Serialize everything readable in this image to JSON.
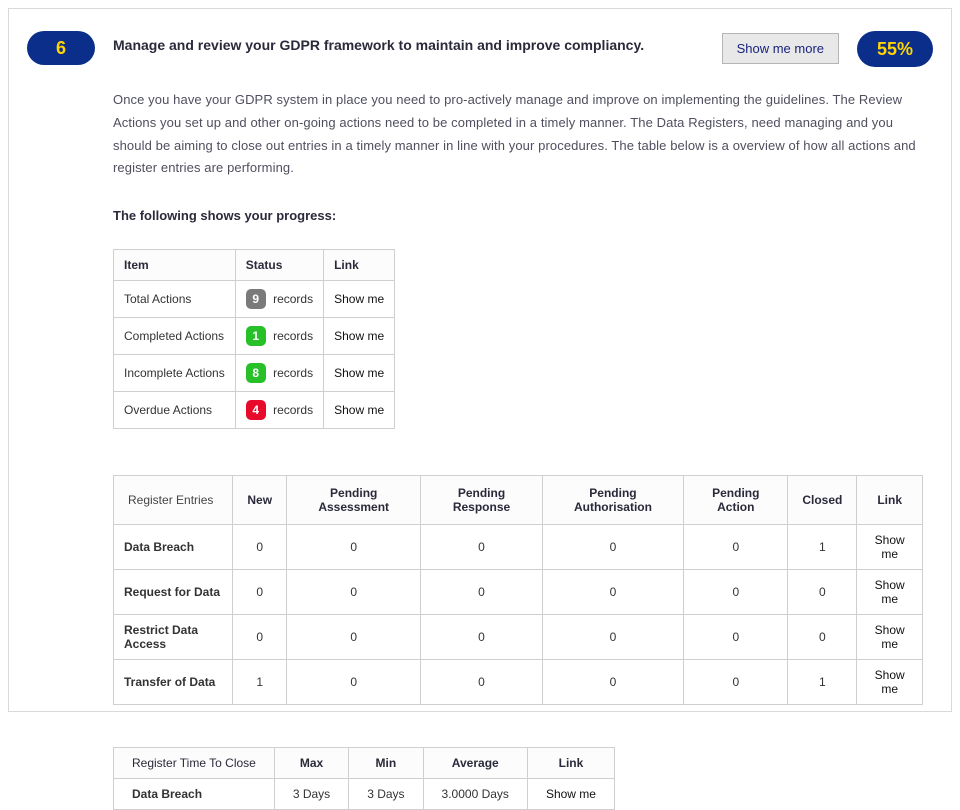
{
  "step": {
    "number": "6",
    "percent": "55%"
  },
  "title": "Manage and review your GDPR framework to maintain and improve compliancy.",
  "show_more_label": "Show me more",
  "description": "Once you have your GDPR system in place you need to pro-actively manage and improve on implementing the guidelines. The Review Actions you set up and other on-going actions need to be completed in a timely manner. The Data Registers, need managing and you should be aiming to close out entries in a timely manner in line with your procedures. The table below is a overview of how all actions and register entries are performing.",
  "subhead": "The following shows your progress:",
  "records_word": "records",
  "link_label": "Show me",
  "progress_table": {
    "columns": [
      "Item",
      "Status",
      "Link"
    ],
    "rows": [
      {
        "item": "Total Actions",
        "count": "9",
        "badge": "grey"
      },
      {
        "item": "Completed Actions",
        "count": "1",
        "badge": "green"
      },
      {
        "item": "Incomplete Actions",
        "count": "8",
        "badge": "green"
      },
      {
        "item": "Overdue Actions",
        "count": "4",
        "badge": "red"
      }
    ]
  },
  "register_table": {
    "columns": [
      "Register Entries",
      "New",
      "Pending Assessment",
      "Pending Response",
      "Pending Authorisation",
      "Pending Action",
      "Closed",
      "Link"
    ],
    "rows": [
      {
        "label": "Data Breach",
        "vals": [
          "0",
          "0",
          "0",
          "0",
          "0",
          "1"
        ]
      },
      {
        "label": "Request for Data",
        "vals": [
          "0",
          "0",
          "0",
          "0",
          "0",
          "0"
        ]
      },
      {
        "label": "Restrict Data Access",
        "vals": [
          "0",
          "0",
          "0",
          "0",
          "0",
          "0"
        ]
      },
      {
        "label": "Transfer of Data",
        "vals": [
          "1",
          "0",
          "0",
          "0",
          "0",
          "1"
        ]
      }
    ]
  },
  "time_table": {
    "columns": [
      "Register Time To Close",
      "Max",
      "Min",
      "Average",
      "Link"
    ],
    "rows": [
      {
        "label": "Data Breach",
        "max": "3 Days",
        "min": "3 Days",
        "avg": "3.0000 Days"
      }
    ]
  },
  "colors": {
    "pill_bg": "#0a2e8a",
    "pill_fg": "#ffd400",
    "badge_grey": "#7a7a7a",
    "badge_green": "#28c028",
    "badge_red": "#e80a2a",
    "border": "#cfcfcf"
  }
}
